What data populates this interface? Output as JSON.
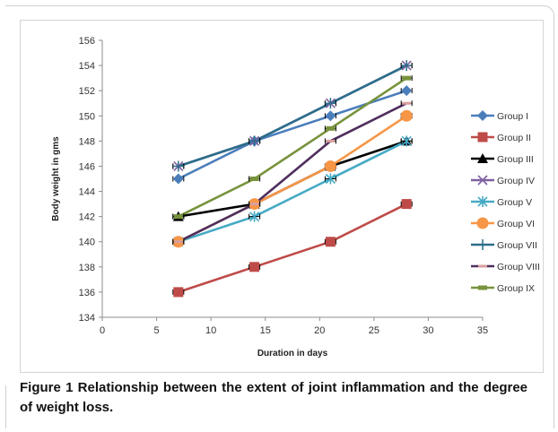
{
  "caption": {
    "label": "Figure 1",
    "text": "Relationship between the extent of joint inflammation and the degree of weight loss."
  },
  "chart_data": {
    "type": "line",
    "xlabel": "Duration in days",
    "ylabel": "Body weight in gms",
    "xlim": [
      0,
      35
    ],
    "ylim": [
      134,
      156
    ],
    "xticks": [
      0,
      5,
      10,
      15,
      20,
      25,
      30,
      35
    ],
    "yticks": [
      134,
      136,
      138,
      140,
      142,
      144,
      146,
      148,
      150,
      152,
      154,
      156
    ],
    "grid": false,
    "legend_position": "right",
    "error_bars": true,
    "x": [
      7,
      14,
      21,
      28
    ],
    "series": [
      {
        "name": "Group I",
        "values": [
          145,
          148,
          150,
          152
        ],
        "color": "#4a7ebb",
        "marker": "diamond"
      },
      {
        "name": "Group II",
        "values": [
          136,
          138,
          140,
          143
        ],
        "color": "#be4b48",
        "marker": "square"
      },
      {
        "name": "Group III",
        "values": [
          142,
          143,
          146,
          148
        ],
        "color": "#000000",
        "marker": "triangle"
      },
      {
        "name": "Group IV",
        "values": [
          146,
          148,
          151,
          154
        ],
        "color": "#7d60a0",
        "marker": "x"
      },
      {
        "name": "Group V",
        "values": [
          140,
          142,
          145,
          148
        ],
        "color": "#46aac5",
        "marker": "star"
      },
      {
        "name": "Group VI",
        "values": [
          140,
          143,
          146,
          150
        ],
        "color": "#f79646",
        "marker": "circle"
      },
      {
        "name": "Group VII",
        "values": [
          146,
          148,
          151,
          154
        ],
        "color": "#2c6d8a",
        "marker": "plus"
      },
      {
        "name": "Group VIII",
        "values": [
          140,
          143,
          148,
          151
        ],
        "color": "#4f2f5e",
        "marker": "dash"
      },
      {
        "name": "Group IX",
        "values": [
          142,
          145,
          149,
          153
        ],
        "color": "#77933c",
        "marker": "bar"
      }
    ]
  }
}
